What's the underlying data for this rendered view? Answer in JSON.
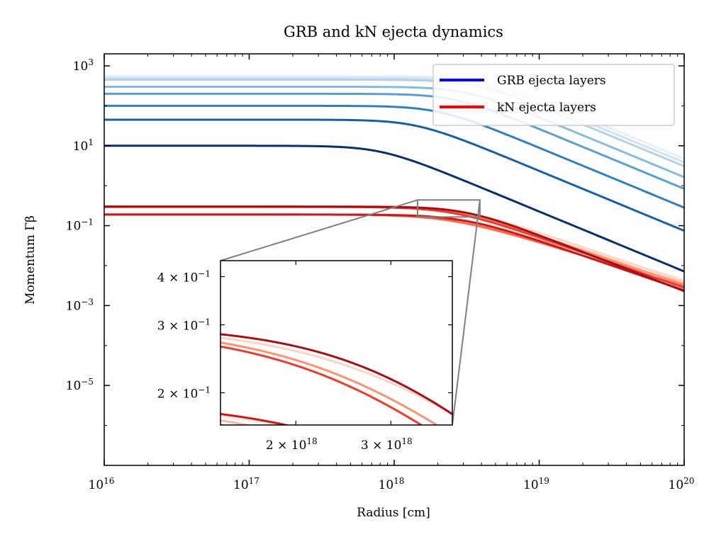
{
  "chart_data": {
    "type": "line",
    "title": "GRB and kN ejecta dynamics",
    "xlabel": "Radius [cm]",
    "ylabel": "Momentum Γβ",
    "xscale": "log",
    "yscale": "log",
    "xlim": [
      1e+16,
      1e+20
    ],
    "ylim": [
      1e-07,
      2000
    ],
    "x_ticks": [
      {
        "value": 1e+16,
        "base": "10",
        "exp": "16"
      },
      {
        "value": 1e+17,
        "base": "10",
        "exp": "17"
      },
      {
        "value": 1e+18,
        "base": "10",
        "exp": "18"
      },
      {
        "value": 1e+19,
        "base": "10",
        "exp": "19"
      },
      {
        "value": 1e+20,
        "base": "10",
        "exp": "20"
      }
    ],
    "y_ticks": [
      {
        "value": 1000,
        "base": "10",
        "exp": "3"
      },
      {
        "value": 10,
        "base": "10",
        "exp": "1"
      },
      {
        "value": 0.1,
        "base": "10",
        "exp": "−1"
      },
      {
        "value": 0.001,
        "base": "10",
        "exp": "−3"
      },
      {
        "value": 1e-05,
        "base": "10",
        "exp": "−5"
      }
    ],
    "legend": {
      "placement": "top-right",
      "entries": [
        {
          "label": "GRB ejecta layers",
          "color": "#0000ff"
        },
        {
          "label": "kN ejecta layers",
          "color": "#ff0000"
        }
      ]
    },
    "grb_series": [
      {
        "plateau": 10,
        "r_decel": 8e+17,
        "color": "#08306b"
      },
      {
        "plateau": 45,
        "r_decel": 1.4e+18,
        "color": "#1660a8"
      },
      {
        "plateau": 100,
        "r_decel": 2e+18,
        "color": "#3080bd"
      },
      {
        "plateau": 200,
        "r_decel": 2.6e+18,
        "color": "#5a9fd0"
      },
      {
        "plateau": 300,
        "r_decel": 3.1e+18,
        "color": "#85bcdc"
      },
      {
        "plateau": 450,
        "r_decel": 3.6e+18,
        "color": "#b3d2e9"
      },
      {
        "plateau": 500,
        "r_decel": 3.9e+18,
        "color": "#d0e2f2"
      },
      {
        "plateau": 550,
        "r_decel": 4.2e+18,
        "color": "#e6effa"
      }
    ],
    "kn_series": [
      {
        "plateau": 0.3,
        "r_decel": 3.1e+18,
        "color": "#a50f15",
        "end": 0.0023
      },
      {
        "plateau": 0.19,
        "r_decel": 3e+18,
        "color": "#cb181d",
        "end": 0.0024
      },
      {
        "plateau": 0.295,
        "r_decel": 2.5e+18,
        "color": "#ef3b2c",
        "end": 0.0028
      },
      {
        "plateau": 0.19,
        "r_decel": 2.4e+18,
        "color": "#fb6a4a",
        "end": 0.003
      },
      {
        "plateau": 0.3,
        "r_decel": 2.6e+18,
        "color": "#fc9272",
        "end": 0.0033
      },
      {
        "plateau": 0.19,
        "r_decel": 2.7e+18,
        "color": "#fcbba1",
        "end": 0.0036
      },
      {
        "plateau": 0.3,
        "r_decel": 3e+18,
        "color": "#fdd5c4",
        "end": 0.004
      },
      {
        "plateau": 0.19,
        "r_decel": 3.1e+18,
        "color": "#fee5d9",
        "end": 0.0044
      }
    ],
    "inset": {
      "xlim": [
        1.45e+18,
        3.9e+18
      ],
      "ylim": [
        0.165,
        0.44
      ],
      "x_ticks": [
        {
          "value": 2e+18,
          "mant": "2",
          "base": "10",
          "exp": "18"
        },
        {
          "value": 3e+18,
          "mant": "3",
          "base": "10",
          "exp": "18"
        }
      ],
      "y_ticks": [
        {
          "value": 0.4,
          "mant": "4",
          "base": "10",
          "exp": "−1"
        },
        {
          "value": 0.3,
          "mant": "3",
          "base": "10",
          "exp": "−1"
        },
        {
          "value": 0.2,
          "mant": "2",
          "base": "10",
          "exp": "−1"
        }
      ]
    },
    "colors": {
      "grb": "#0000ff",
      "kn": "#ff0000",
      "zoom_box": "#808080"
    }
  }
}
